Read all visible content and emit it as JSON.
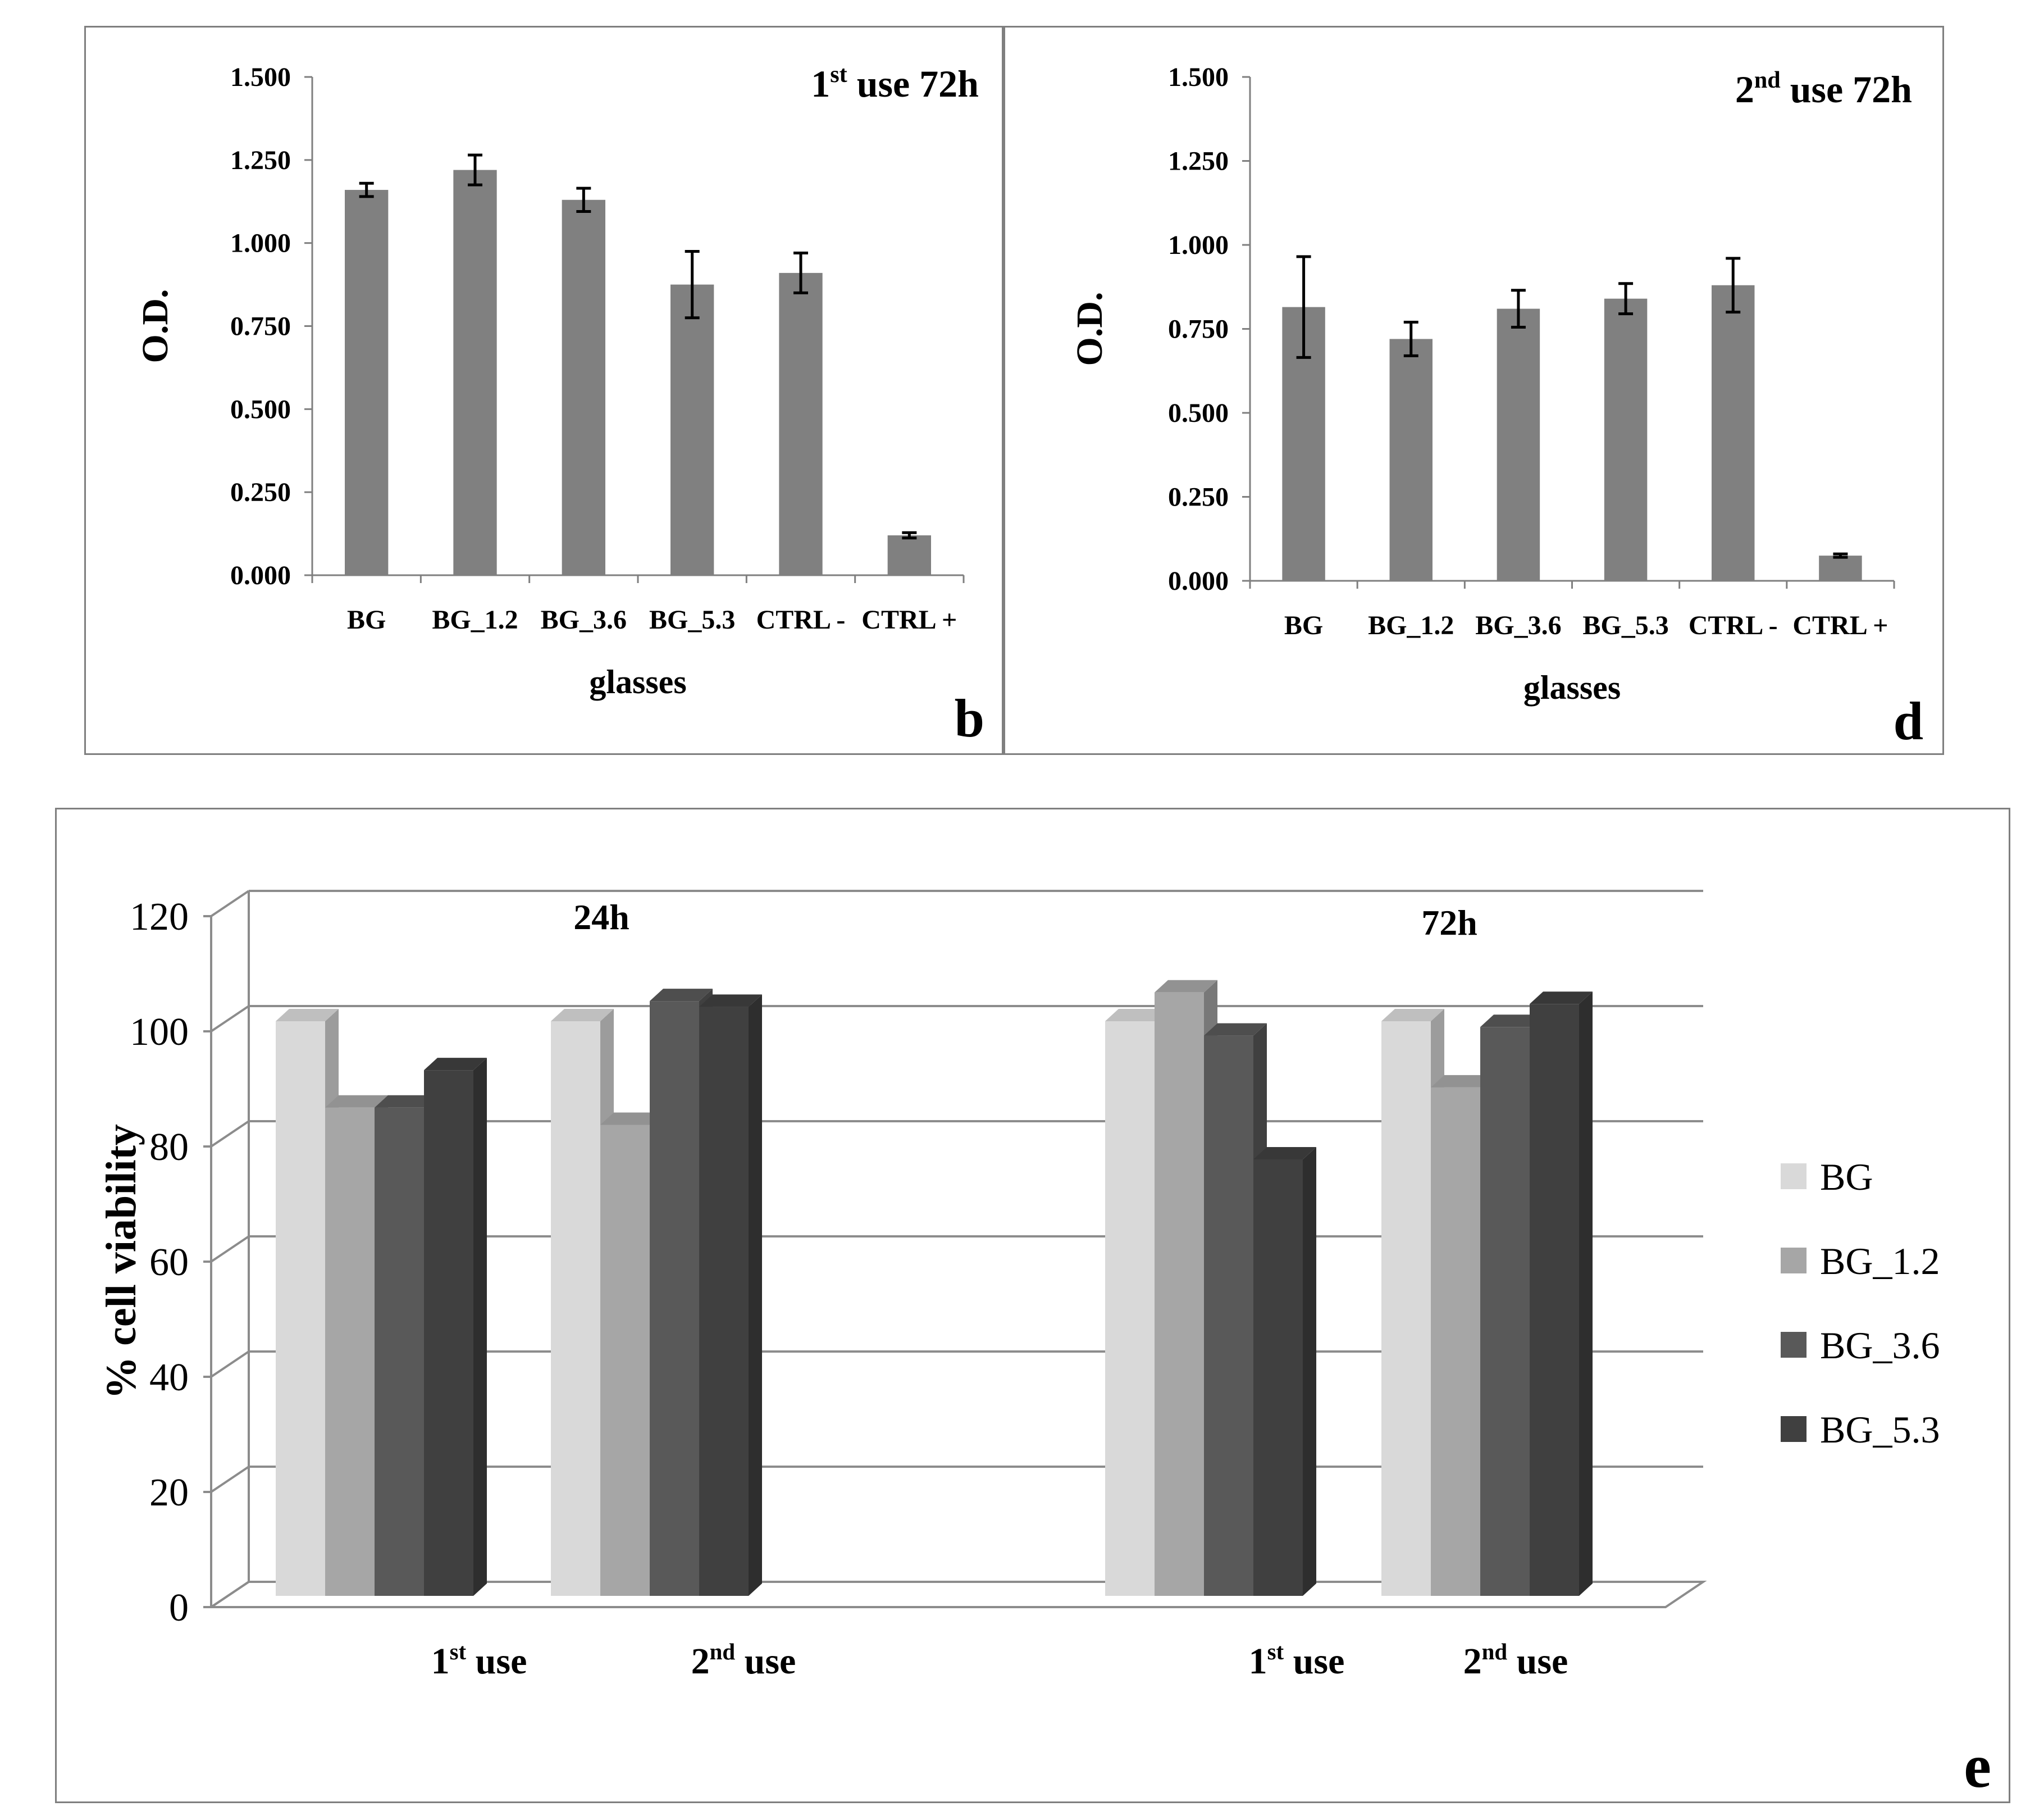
{
  "chart_data": [
    {
      "type": "bar",
      "panel_letter": "b",
      "title_prefix": "1",
      "title_sup": "st",
      "title_suffix": " use 72h",
      "xlabel": "glasses",
      "ylabel": "O.D.",
      "ylim": [
        0,
        1.5
      ],
      "yticks": [
        "0.000",
        "0.250",
        "0.500",
        "0.750",
        "1.000",
        "1.250",
        "1.500"
      ],
      "categories": [
        "BG",
        "BG_1.2",
        "BG_3.6",
        "BG_5.3",
        "CTRL -",
        "CTRL +"
      ],
      "values": [
        1.16,
        1.22,
        1.13,
        0.875,
        0.91,
        0.12
      ],
      "errors": [
        0.02,
        0.045,
        0.035,
        0.1,
        0.06,
        0.008
      ],
      "color": "#808080"
    },
    {
      "type": "bar",
      "panel_letter": "d",
      "title_prefix": "2",
      "title_sup": "nd",
      "title_suffix": " use 72h",
      "xlabel": "glasses",
      "ylabel": "O.D.",
      "ylim": [
        0,
        1.5
      ],
      "yticks": [
        "0.000",
        "0.250",
        "0.500",
        "0.750",
        "1.000",
        "1.250",
        "1.500"
      ],
      "categories": [
        "BG",
        "BG_1.2",
        "BG_3.6",
        "BG_5.3",
        "CTRL -",
        "CTRL +"
      ],
      "values": [
        0.815,
        0.72,
        0.81,
        0.84,
        0.88,
        0.075
      ],
      "errors": [
        0.15,
        0.05,
        0.055,
        0.045,
        0.08,
        0.005
      ],
      "color": "#808080"
    },
    {
      "type": "bar",
      "panel_letter": "e",
      "style": "3d-clustered",
      "ylabel": "% cell viability",
      "ylim": [
        0,
        120
      ],
      "yticks": [
        "0",
        "20",
        "40",
        "60",
        "80",
        "100",
        "120"
      ],
      "group_titles": [
        "24h",
        "72h"
      ],
      "categories": [
        {
          "prefix": "1",
          "sup": "st",
          "suffix": " use"
        },
        {
          "prefix": "2",
          "sup": "nd",
          "suffix": " use"
        },
        {
          "prefix": "1",
          "sup": "st",
          "suffix": " use"
        },
        {
          "prefix": "2",
          "sup": "nd",
          "suffix": " use"
        }
      ],
      "series": [
        {
          "name": "BG",
          "color": "#d9d9d9",
          "values": [
            100,
            100,
            100,
            100
          ]
        },
        {
          "name": "BG_1.2",
          "color": "#a6a6a6",
          "values": [
            85,
            82,
            105,
            88.5
          ]
        },
        {
          "name": "BG_3.6",
          "color": "#595959",
          "values": [
            85,
            103.5,
            97.5,
            99
          ]
        },
        {
          "name": "BG_5.3",
          "color": "#404040",
          "values": [
            91.5,
            102.5,
            76,
            103
          ]
        }
      ]
    }
  ]
}
